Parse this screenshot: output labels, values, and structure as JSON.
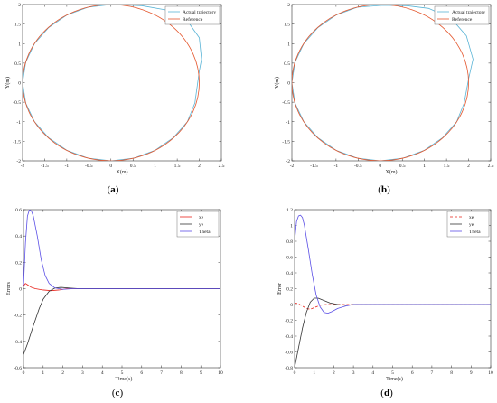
{
  "captions": [
    "(a)",
    "(b)",
    "(c)",
    "(d)"
  ],
  "colors": {
    "actual": "#5ab4d6",
    "reference": "#e4572e",
    "xe": "#e8221a",
    "ye": "#333333",
    "theta": "#5b4fe6"
  },
  "chart_data": [
    {
      "type": "line",
      "caption": "(a)",
      "xlabel": "X(m)",
      "ylabel": "Y(m)",
      "xlim": [
        -2,
        2.5
      ],
      "ylim": [
        -2,
        2
      ],
      "xticks": [
        "-2",
        "-1.5",
        "-1",
        "-0.5",
        "0",
        "0.5",
        "1",
        "1.5",
        "2",
        "2.5"
      ],
      "yticks": [
        "-2",
        "-1.5",
        "-1",
        "-0.5",
        "0",
        "0.5",
        "1",
        "1.5",
        "2"
      ],
      "legend": [
        "Actual trajectory",
        "Reference"
      ],
      "legend_position": "top-right",
      "series": [
        {
          "name": "Actual trajectory",
          "x": [
            0,
            0.7,
            1.3,
            1.75,
            2.0,
            2.05,
            2.0,
            1.9,
            1.73,
            1.41,
            1.0,
            0.52,
            0,
            -0.52,
            -1.0,
            -1.41,
            -1.73,
            -1.93,
            -2.0,
            -1.93,
            -1.73,
            -1.41,
            -1.0,
            -0.52,
            0
          ],
          "y": [
            2.0,
            1.97,
            1.85,
            1.55,
            1.15,
            0.6,
            0.3,
            -0.52,
            -1.0,
            -1.41,
            -1.73,
            -1.93,
            -2.0,
            -1.93,
            -1.73,
            -1.41,
            -1.0,
            -0.52,
            0,
            0.52,
            1.0,
            1.41,
            1.73,
            1.93,
            2.0
          ]
        },
        {
          "name": "Reference",
          "shape": "circle",
          "center": [
            0,
            0
          ],
          "radius": 2
        }
      ]
    },
    {
      "type": "line",
      "caption": "(b)",
      "xlabel": "X(m)",
      "ylabel": "Y(m)",
      "xlim": [
        -2,
        2.5
      ],
      "ylim": [
        -2,
        2
      ],
      "xticks": [
        "-2",
        "-1.5",
        "-1",
        "-0.5",
        "0",
        "0.5",
        "1",
        "1.5",
        "2",
        "2.5"
      ],
      "yticks": [
        "-2",
        "-1.5",
        "-1",
        "-0.5",
        "0",
        "0.5",
        "1",
        "1.5",
        "2"
      ],
      "legend": [
        "Actual trajectory",
        "Reference"
      ],
      "legend_position": "top-right",
      "series": [
        {
          "name": "Actual trajectory",
          "x": [
            0.05,
            0.6,
            1.1,
            1.6,
            1.95,
            2.1,
            2.0,
            1.9,
            1.73,
            1.41,
            1.0,
            0.52,
            0,
            -0.52,
            -1.0,
            -1.41,
            -1.73,
            -1.93,
            -2.0,
            -1.93,
            -1.73,
            -1.41,
            -1.0,
            -0.52,
            0.05
          ],
          "y": [
            1.98,
            1.97,
            1.9,
            1.65,
            1.2,
            0.6,
            0.1,
            -0.52,
            -1.0,
            -1.41,
            -1.73,
            -1.93,
            -2.0,
            -1.93,
            -1.73,
            -1.41,
            -1.0,
            -0.52,
            0,
            0.52,
            1.0,
            1.41,
            1.73,
            1.93,
            1.98
          ]
        },
        {
          "name": "Reference",
          "shape": "circle",
          "center": [
            0,
            0
          ],
          "radius": 2
        }
      ]
    },
    {
      "type": "line",
      "caption": "(c)",
      "xlabel": "Time(s)",
      "ylabel": "Errors",
      "xlim": [
        0,
        10
      ],
      "ylim": [
        -0.6,
        0.6
      ],
      "xticks": [
        "0",
        "1",
        "2",
        "3",
        "4",
        "5",
        "6",
        "7",
        "8",
        "9",
        "10"
      ],
      "yticks": [
        "-0.6",
        "-0.4",
        "-0.2",
        "0",
        "0.2",
        "0.4",
        "0.6"
      ],
      "legend": [
        "xe",
        "ye",
        "Theta"
      ],
      "legend_position": "top-right",
      "series": [
        {
          "name": "xe",
          "x": [
            0,
            0.1,
            0.2,
            0.4,
            0.6,
            1.0,
            1.4,
            1.8,
            2.2,
            3,
            10
          ],
          "y": [
            0.02,
            0.04,
            0.03,
            0.01,
            0.0,
            -0.01,
            -0.015,
            -0.01,
            0,
            0,
            0
          ]
        },
        {
          "name": "ye",
          "x": [
            0,
            0.2,
            0.5,
            0.8,
            1.0,
            1.3,
            1.6,
            1.9,
            2.3,
            2.8,
            3.5,
            10
          ],
          "y": [
            -0.5,
            -0.42,
            -0.28,
            -0.15,
            -0.08,
            -0.02,
            0.005,
            0.01,
            0.005,
            0,
            0,
            0
          ]
        },
        {
          "name": "Theta",
          "x": [
            0,
            0.1,
            0.2,
            0.3,
            0.4,
            0.5,
            0.7,
            0.9,
            1.1,
            1.3,
            1.6,
            2.0,
            2.5,
            3.0,
            10
          ],
          "y": [
            0.02,
            0.35,
            0.55,
            0.6,
            0.59,
            0.55,
            0.4,
            0.22,
            0.1,
            0.04,
            0.005,
            -0.005,
            0,
            0,
            0
          ]
        }
      ]
    },
    {
      "type": "line",
      "caption": "(d)",
      "xlabel": "Time(s)",
      "ylabel": "Error",
      "xlim": [
        0,
        10
      ],
      "ylim": [
        -0.8,
        1.2
      ],
      "xticks": [
        "0",
        "1",
        "2",
        "3",
        "4",
        "5",
        "6",
        "7",
        "8",
        "9",
        "10"
      ],
      "yticks": [
        "-0.8",
        "-0.6",
        "-0.4",
        "-0.2",
        "0",
        "0.2",
        "0.4",
        "0.6",
        "0.8",
        "1",
        "1.2"
      ],
      "legend": [
        "xe",
        "ye",
        "Theta"
      ],
      "legend_position": "top-right",
      "series": [
        {
          "name": "xe",
          "dash": true,
          "x": [
            0,
            0.2,
            0.4,
            0.6,
            0.8,
            1.0,
            1.3,
            1.6,
            2.0,
            2.5,
            10
          ],
          "y": [
            0.02,
            0.01,
            -0.02,
            -0.05,
            -0.06,
            -0.04,
            -0.01,
            0.0,
            0,
            0,
            0
          ]
        },
        {
          "name": "ye",
          "x": [
            0,
            0.2,
            0.4,
            0.6,
            0.8,
            1.0,
            1.2,
            1.5,
            1.8,
            2.2,
            2.6,
            3.0,
            3.5,
            10
          ],
          "y": [
            -0.8,
            -0.55,
            -0.3,
            -0.1,
            0.03,
            0.08,
            0.08,
            0.05,
            0.02,
            0.0,
            -0.01,
            0,
            0,
            0
          ]
        },
        {
          "name": "Theta",
          "x": [
            0,
            0.1,
            0.2,
            0.3,
            0.4,
            0.5,
            0.7,
            0.9,
            1.1,
            1.3,
            1.5,
            1.7,
            1.9,
            2.2,
            2.6,
            3.0,
            4.0,
            10
          ],
          "y": [
            0.8,
            1.05,
            1.12,
            1.13,
            1.1,
            1.0,
            0.7,
            0.38,
            0.12,
            -0.03,
            -0.1,
            -0.11,
            -0.09,
            -0.05,
            -0.02,
            0.0,
            0,
            0
          ]
        }
      ]
    }
  ]
}
